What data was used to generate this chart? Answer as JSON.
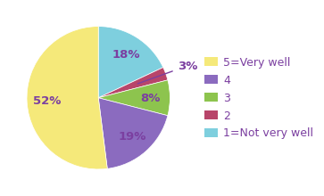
{
  "labels": [
    "5=Very well",
    "4",
    "3",
    "2",
    "1=Not very well"
  ],
  "values": [
    52,
    19,
    8,
    3,
    18
  ],
  "colors": [
    "#f5e97a",
    "#8b6bbf",
    "#8dc44e",
    "#b8456a",
    "#7ecfde"
  ],
  "text_color": "#7b3fa0",
  "background_color": "#ffffff",
  "label_fontsize": 9.5,
  "legend_fontsize": 9
}
